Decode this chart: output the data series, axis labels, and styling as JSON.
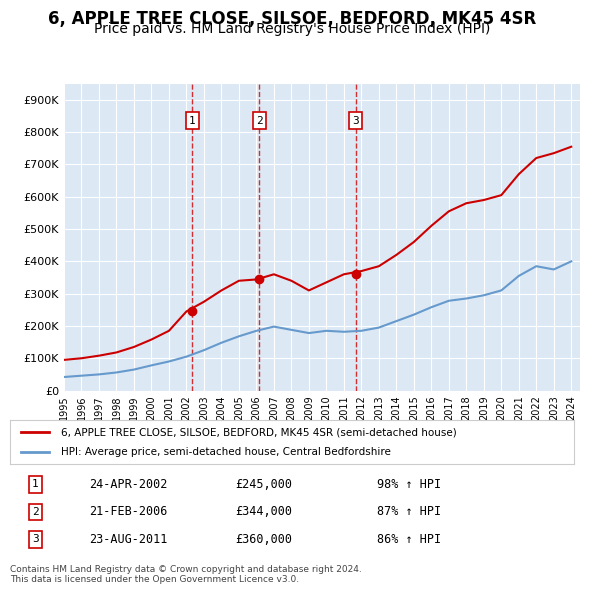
{
  "title": "6, APPLE TREE CLOSE, SILSOE, BEDFORD, MK45 4SR",
  "subtitle": "Price paid vs. HM Land Registry's House Price Index (HPI)",
  "title_fontsize": 12,
  "subtitle_fontsize": 10,
  "background_color": "#ffffff",
  "plot_background": "#dce9f5",
  "grid_color": "#ffffff",
  "ylim": [
    0,
    950000
  ],
  "yticks": [
    0,
    100000,
    200000,
    300000,
    400000,
    500000,
    600000,
    700000,
    800000,
    900000
  ],
  "ytick_labels": [
    "£0",
    "£100K",
    "£200K",
    "£300K",
    "£400K",
    "£500K",
    "£600K",
    "£700K",
    "£800K",
    "£900K"
  ],
  "sale_dates": [
    "2002-04-24",
    "2006-02-21",
    "2011-08-23"
  ],
  "sale_prices": [
    245000,
    344000,
    360000
  ],
  "sale_labels": [
    "1",
    "2",
    "3"
  ],
  "sale_pct_hpi": [
    "98%",
    "87%",
    "86%"
  ],
  "sale_date_labels": [
    "24-APR-2002",
    "21-FEB-2006",
    "23-AUG-2011"
  ],
  "red_line_color": "#cc0000",
  "blue_line_color": "#6699cc",
  "legend_red_label": "6, APPLE TREE CLOSE, SILSOE, BEDFORD, MK45 4SR (semi-detached house)",
  "legend_blue_label": "HPI: Average price, semi-detached house, Central Bedfordshire",
  "footer_text": "Contains HM Land Registry data © Crown copyright and database right 2024.\nThis data is licensed under the Open Government Licence v3.0.",
  "hpi_years": [
    1995,
    1996,
    1997,
    1998,
    1999,
    2000,
    2001,
    2002,
    2003,
    2004,
    2005,
    2006,
    2007,
    2008,
    2009,
    2010,
    2011,
    2012,
    2013,
    2014,
    2015,
    2016,
    2017,
    2018,
    2019,
    2020,
    2021,
    2022,
    2023,
    2024
  ],
  "hpi_values": [
    42000,
    46000,
    50000,
    56000,
    65000,
    78000,
    90000,
    105000,
    125000,
    148000,
    168000,
    185000,
    198000,
    188000,
    178000,
    185000,
    182000,
    185000,
    195000,
    215000,
    235000,
    258000,
    278000,
    285000,
    295000,
    310000,
    355000,
    385000,
    375000,
    400000
  ],
  "red_years": [
    1995,
    1996,
    1997,
    1998,
    1999,
    2000,
    2001,
    2002,
    2003,
    2004,
    2005,
    2006,
    2007,
    2008,
    2009,
    2010,
    2011,
    2012,
    2013,
    2014,
    2015,
    2016,
    2017,
    2018,
    2019,
    2020,
    2021,
    2022,
    2023,
    2024
  ],
  "red_values": [
    95000,
    100000,
    108000,
    118000,
    135000,
    158000,
    185000,
    245000,
    275000,
    310000,
    340000,
    344000,
    360000,
    340000,
    310000,
    335000,
    360000,
    370000,
    385000,
    420000,
    460000,
    510000,
    555000,
    580000,
    590000,
    605000,
    670000,
    720000,
    735000,
    755000
  ]
}
